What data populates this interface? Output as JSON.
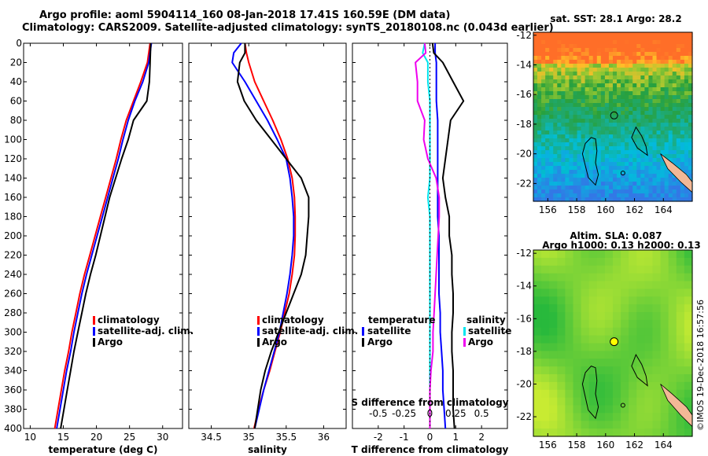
{
  "header": {
    "title_line1": "Argo profile: aoml 5904114_160 08-Jan-2018 17.41S 160.59E (DM data)",
    "title_line2": "Climatology: CARS2009. Satellite-adjusted climatology: synTS_20180108.nc (0.043d earlier)",
    "credit": "©IMOS 19-Dec-2018 16:57:56"
  },
  "colors": {
    "climatology": "#ff0000",
    "satellite": "#0000ff",
    "argo": "#000000",
    "t_satellite": "#0000ff",
    "t_argo": "#000000",
    "s_satellite": "#00e5ee",
    "s_argo": "#ee00ee",
    "coast": "#f2b896"
  },
  "chart_data": [
    {
      "type": "line",
      "panel": "temperature",
      "xlabel": "temperature (deg C)",
      "ylabel": "",
      "xlim": [
        9,
        33
      ],
      "ylim": [
        400,
        0
      ],
      "xticks": [
        10,
        15,
        20,
        25,
        30
      ],
      "yticks": [
        0,
        20,
        40,
        60,
        80,
        100,
        120,
        140,
        160,
        180,
        200,
        220,
        240,
        260,
        280,
        300,
        320,
        340,
        360,
        380,
        400
      ],
      "legend": [
        "climatology",
        "satellite-adj. clim.",
        "Argo"
      ],
      "depth": [
        0,
        20,
        40,
        60,
        80,
        100,
        120,
        140,
        160,
        180,
        200,
        220,
        240,
        260,
        280,
        300,
        320,
        340,
        360,
        380,
        400
      ],
      "series": [
        {
          "name": "climatology",
          "values": [
            28.1,
            27.7,
            26.7,
            25.6,
            24.5,
            23.7,
            23.0,
            22.2,
            21.4,
            20.6,
            19.8,
            19.0,
            18.2,
            17.5,
            16.9,
            16.3,
            15.8,
            15.2,
            14.7,
            14.2,
            13.7
          ]
        },
        {
          "name": "satellite-adj. clim.",
          "values": [
            28.3,
            27.9,
            27.0,
            25.8,
            24.8,
            24.0,
            23.3,
            22.5,
            21.7,
            20.9,
            20.1,
            19.3,
            18.5,
            17.8,
            17.2,
            16.6,
            16.1,
            15.5,
            15.0,
            14.5,
            14.0
          ]
        },
        {
          "name": "Argo",
          "values": [
            28.2,
            28.1,
            28.0,
            27.6,
            25.6,
            24.8,
            23.8,
            22.9,
            22.0,
            21.3,
            20.6,
            19.9,
            19.1,
            18.4,
            17.8,
            17.2,
            16.6,
            16.1,
            15.6,
            15.1,
            14.6
          ]
        }
      ]
    },
    {
      "type": "line",
      "panel": "salinity",
      "xlabel": "salinity",
      "xlim": [
        34.2,
        36.3
      ],
      "ylim": [
        400,
        0
      ],
      "xticks": [
        34.5,
        35,
        35.5,
        36
      ],
      "legend": [
        "climatology",
        "satellite-adj. clim.",
        "Argo"
      ],
      "depth": [
        0,
        10,
        20,
        40,
        60,
        80,
        100,
        120,
        140,
        160,
        180,
        200,
        220,
        240,
        260,
        280,
        300,
        320,
        340,
        360,
        380,
        400
      ],
      "series": [
        {
          "name": "climatology",
          "values": [
            34.95,
            34.97,
            35.0,
            35.08,
            35.2,
            35.32,
            35.43,
            35.52,
            35.58,
            35.61,
            35.62,
            35.62,
            35.61,
            35.58,
            35.54,
            35.48,
            35.42,
            35.35,
            35.28,
            35.2,
            35.13,
            35.07
          ]
        },
        {
          "name": "satellite-adj. clim.",
          "values": [
            34.9,
            34.8,
            34.78,
            34.95,
            35.1,
            35.25,
            35.38,
            35.5,
            35.55,
            35.58,
            35.6,
            35.6,
            35.58,
            35.55,
            35.51,
            35.46,
            35.41,
            35.34,
            35.27,
            35.2,
            35.14,
            35.08
          ]
        },
        {
          "name": "Argo",
          "values": [
            34.95,
            34.95,
            34.88,
            34.85,
            34.94,
            35.1,
            35.3,
            35.5,
            35.7,
            35.8,
            35.8,
            35.78,
            35.76,
            35.7,
            35.6,
            35.5,
            35.4,
            35.3,
            35.22,
            35.16,
            35.12,
            35.08
          ]
        }
      ]
    },
    {
      "type": "line",
      "panel": "differences",
      "xlabel": "T difference from climatology",
      "xlabel_top": "S difference from climatology",
      "xlim": [
        -3,
        3
      ],
      "ylim": [
        400,
        0
      ],
      "xticks": [
        -2,
        -1,
        0,
        1,
        2
      ],
      "xticks_top": [
        -0.5,
        -0.25,
        0,
        0.25,
        0.5
      ],
      "legend_t_title": "temperature",
      "legend_s_title": "salinity",
      "legend_t": [
        "satellite",
        "Argo"
      ],
      "legend_s": [
        "satellite",
        "Argo"
      ],
      "depth": [
        0,
        10,
        20,
        40,
        60,
        80,
        100,
        120,
        140,
        160,
        180,
        200,
        220,
        240,
        260,
        280,
        300,
        320,
        340,
        360,
        380,
        400
      ],
      "series": [
        {
          "name": "T satellite",
          "values": [
            0.2,
            0.2,
            0.25,
            0.25,
            0.25,
            0.3,
            0.3,
            0.3,
            0.3,
            0.3,
            0.3,
            0.35,
            0.35,
            0.35,
            0.35,
            0.4,
            0.4,
            0.45,
            0.5,
            0.5,
            0.55,
            0.6
          ]
        },
        {
          "name": "T Argo",
          "values": [
            0.1,
            0.15,
            0.5,
            0.9,
            1.3,
            0.8,
            0.7,
            0.6,
            0.5,
            0.6,
            0.75,
            0.75,
            0.85,
            0.85,
            0.9,
            0.9,
            0.85,
            0.85,
            0.9,
            0.9,
            0.9,
            0.95
          ]
        },
        {
          "name": "S satellite",
          "values": [
            -0.05,
            -0.07,
            -0.02,
            -0.02,
            0.0,
            0.0,
            0.0,
            0.0,
            0.0,
            -0.02,
            0.0,
            0.0,
            0.0,
            0.0,
            0.0,
            0.0,
            0.0,
            0.0,
            0.0,
            0.0,
            0.0,
            0.0
          ]
        },
        {
          "name": "S Argo",
          "values": [
            -0.05,
            -0.04,
            -0.14,
            -0.12,
            -0.12,
            -0.05,
            -0.06,
            -0.02,
            0.06,
            0.09,
            0.09,
            0.08,
            0.07,
            0.06,
            0.05,
            0.04,
            0.03,
            0.03,
            0.01,
            0.0,
            0.0,
            0.0
          ]
        }
      ]
    },
    {
      "type": "heatmap",
      "panel": "sst-map",
      "title": "sat. SST: 28.1  Argo: 28.2",
      "xlim": [
        155,
        166
      ],
      "ylim": [
        -23.2,
        -11.8
      ],
      "xticks": [
        156,
        158,
        160,
        162,
        164
      ],
      "yticks": [
        -12,
        -14,
        -16,
        -18,
        -20,
        -22
      ],
      "argo_position": [
        160.59,
        -17.41
      ]
    },
    {
      "type": "heatmap",
      "panel": "sla-map",
      "title": "Altim. SLA: 0.087",
      "subtitle": "Argo h1000: 0.13 h2000: 0.13",
      "xlim": [
        155,
        166
      ],
      "ylim": [
        -23.2,
        -11.8
      ],
      "xticks": [
        156,
        158,
        160,
        162,
        164
      ],
      "yticks": [
        -12,
        -14,
        -16,
        -18,
        -20,
        -22
      ],
      "argo_position": [
        160.59,
        -17.41
      ]
    }
  ]
}
